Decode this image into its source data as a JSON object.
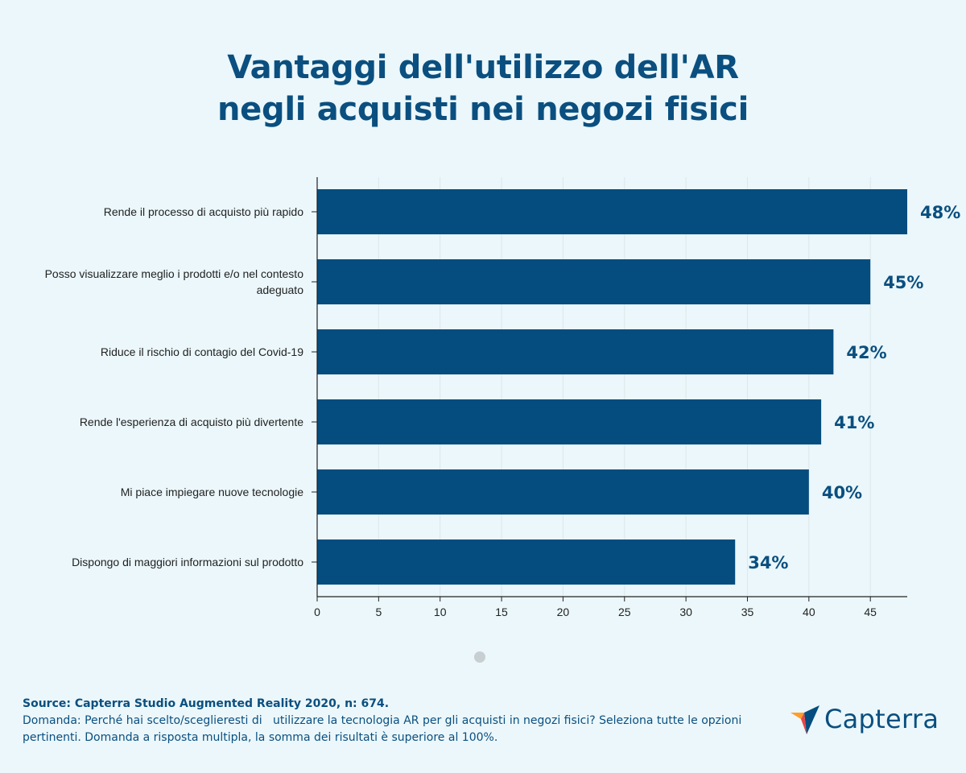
{
  "title": {
    "line1": "Vantaggi dell'utilizzo dell'AR",
    "line2": "negli acquisti nei negozi fisici"
  },
  "chart_data": {
    "type": "bar",
    "orientation": "horizontal",
    "categories": [
      [
        "Rende il processo di acquisto più rapido"
      ],
      [
        "Posso visualizzare meglio i prodotti e/o nel contesto",
        "adeguato"
      ],
      [
        "Riduce il rischio di contagio del Covid-19"
      ],
      [
        "Rende l'esperienza di acquisto più divertente"
      ],
      [
        "Mi piace impiegare nuove tecnologie"
      ],
      [
        "Dispongo di maggiori informazioni sul prodotto"
      ]
    ],
    "values": [
      48,
      45,
      42,
      41,
      40,
      34
    ],
    "value_labels": [
      "48%",
      "45%",
      "42%",
      "41%",
      "40%",
      "34%"
    ],
    "xlim": [
      0,
      48
    ],
    "xticks": [
      0,
      5,
      10,
      15,
      20,
      25,
      30,
      35,
      40,
      45
    ],
    "xlabel": "",
    "ylabel": "",
    "grid": "vertical",
    "bar_color": "#064d7f",
    "label_color": "#0a4f7f"
  },
  "footer": {
    "source": "Source: Capterra Studio Augmented Reality 2020, n: 674.",
    "question": "Domanda: Perché hai scelto/sceglieresti di   utilizzare la tecnologia AR per gli acquisti in negozi fisici? Seleziona tutte le opzioni pertinenti. Domanda a risposta multipla, la somma dei risultati è superiore al 100%."
  },
  "logo": {
    "text": "Capterra",
    "icon": "capterra-arrow-icon",
    "colors": [
      "#ff9d28",
      "#68c5ed",
      "#044d80",
      "#e54747"
    ]
  }
}
